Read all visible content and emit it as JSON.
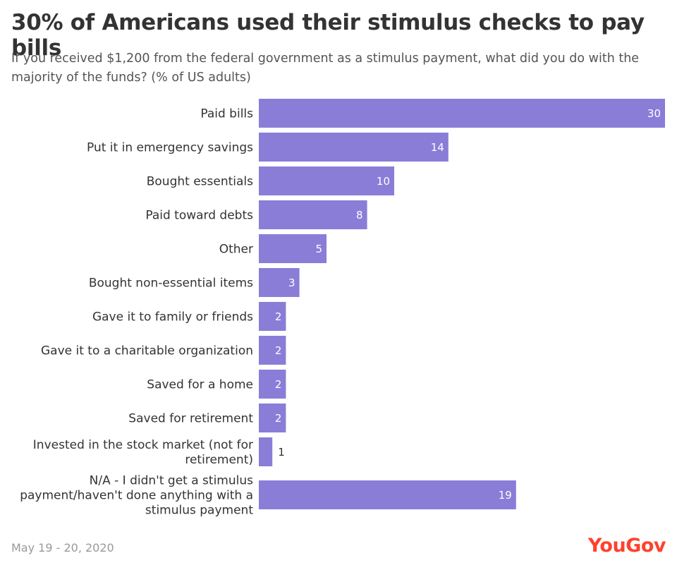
{
  "header": {
    "title": "30% of Americans used their stimulus checks to pay bills",
    "subtitle": "If you received $1,200 from the federal government as a stimulus payment, what did you do with the majority of the funds? (% of US adults)"
  },
  "chart_data": {
    "type": "bar",
    "orientation": "horizontal",
    "title": "30% of Americans used their stimulus checks to pay bills",
    "subtitle": "If you received $1,200 from the federal government as a stimulus payment, what did you do with the majority of the funds? (% of US adults)",
    "categories": [
      [
        "Paid bills"
      ],
      [
        "Put it in emergency savings"
      ],
      [
        "Bought essentials"
      ],
      [
        "Paid toward debts"
      ],
      [
        "Other"
      ],
      [
        "Bought non-essential items"
      ],
      [
        "Gave it to family or friends"
      ],
      [
        "Gave it to a charitable organization"
      ],
      [
        "Saved for a home"
      ],
      [
        "Saved for retirement"
      ],
      [
        "Invested in the stock market (not for",
        "retirement)"
      ],
      [
        "N/A - I didn't get a stimulus",
        "payment/haven't done anything with a",
        "stimulus payment"
      ]
    ],
    "values": [
      30,
      14,
      10,
      8,
      5,
      3,
      2,
      2,
      2,
      2,
      1,
      19
    ],
    "xlim": [
      0,
      30
    ],
    "xlabel": "",
    "ylabel": "",
    "grid": false,
    "legend": "none",
    "bar_color": "#8a7dd8"
  },
  "footer": {
    "date": "May 19 - 20, 2020",
    "brand": "YouGov",
    "brand_color": "#ff412c"
  }
}
